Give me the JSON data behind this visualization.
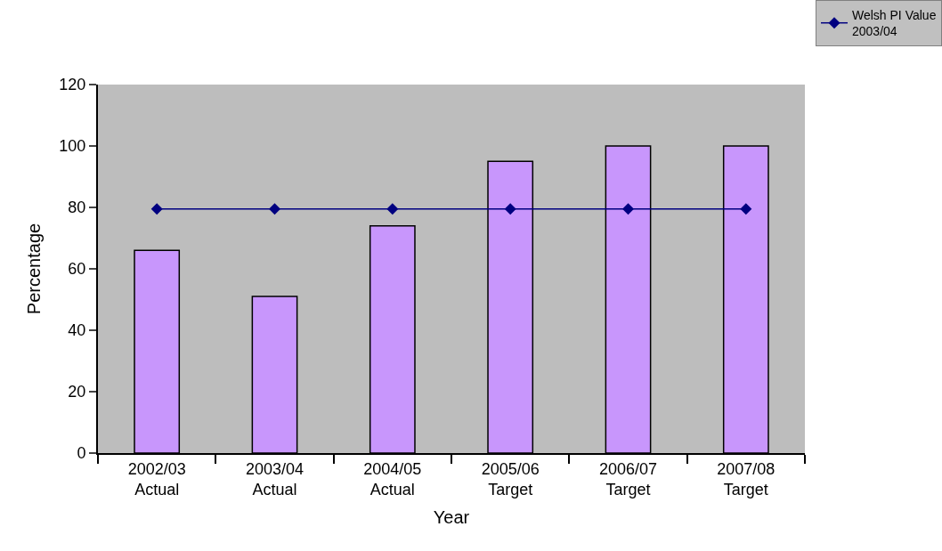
{
  "chart_data": {
    "type": "bar",
    "xlabel": "Year",
    "ylabel": "Percentage",
    "categories": [
      "2002/03\nActual",
      "2003/04\nActual",
      "2004/05\nActual",
      "2005/06\nTarget",
      "2006/07\nTarget",
      "2007/08\nTarget"
    ],
    "series": [
      {
        "color": "#c896fc",
        "values": [
          66,
          51,
          74,
          95,
          100,
          100
        ]
      },
      {
        "type": "line",
        "name": "Welsh PI Value\n2003/04",
        "color": "#000080",
        "values": [
          79.5,
          79.5,
          79.5,
          79.5,
          79.5,
          79.5
        ],
        "marker": "diamond",
        "line_style": "solid"
      }
    ],
    "ylim": [
      0,
      120
    ],
    "yticks": [
      0,
      20,
      40,
      60,
      80,
      100,
      120
    ],
    "grid": false,
    "legend": "top right"
  }
}
